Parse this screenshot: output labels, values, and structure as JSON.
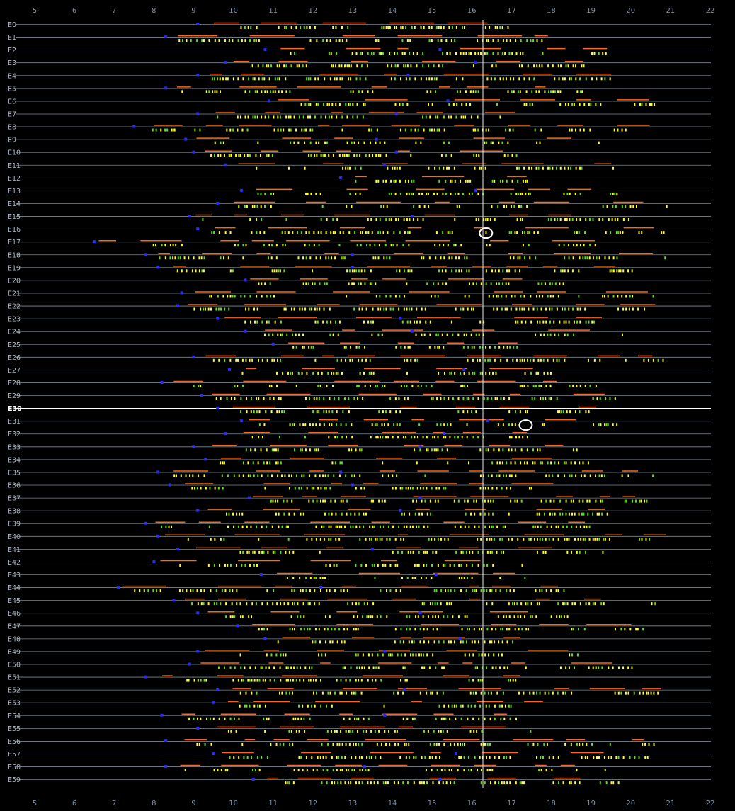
{
  "chart_data": {
    "type": "scatter",
    "title": "",
    "xlabel": "",
    "ylabel": "",
    "xlim": [
      5,
      22
    ],
    "x_ticks": [
      "5",
      "6",
      "7",
      "8",
      "9",
      "10",
      "11",
      "12",
      "13",
      "14",
      "15",
      "16",
      "17",
      "18",
      "19",
      "20",
      "21",
      "22"
    ],
    "grid": "horizontal lines per row",
    "highlighted_row": "E30",
    "cursor_x": 16.28,
    "row_labels": [
      "E0",
      "E1",
      "E2",
      "E3",
      "E4",
      "E5",
      "E6",
      "E7",
      "E8",
      "E9",
      "E10",
      "E11",
      "E12",
      "E13",
      "E14",
      "E15",
      "E16",
      "E17",
      "E18",
      "E19",
      "E20",
      "E21",
      "E22",
      "E23",
      "E24",
      "E25",
      "E26",
      "E27",
      "E28",
      "E29",
      "E30",
      "E31",
      "E32",
      "E33",
      "E34",
      "E35",
      "E36",
      "E37",
      "E38",
      "E39",
      "E40",
      "E41",
      "E42",
      "E43",
      "E44",
      "E45",
      "E46",
      "E47",
      "E48",
      "E49",
      "E50",
      "E51",
      "E52",
      "E53",
      "E54",
      "E55",
      "E56",
      "E57",
      "E58",
      "E59"
    ],
    "start_markers": [
      9.1,
      8.3,
      10.8,
      9.8,
      9.1,
      8.3,
      10.9,
      9.1,
      7.5,
      8.8,
      9.0,
      9.8,
      12.7,
      10.2,
      9.6,
      8.9,
      9.1,
      6.5,
      7.8,
      8.1,
      10.3,
      8.7,
      8.6,
      9.6,
      10.3,
      11.0,
      9.0,
      9.9,
      8.2,
      9.2,
      9.6,
      10.2,
      9.8,
      9.0,
      9.3,
      8.1,
      8.4,
      10.4,
      9.1,
      7.8,
      8.1,
      8.6,
      8.0,
      10.7,
      7.1,
      8.5,
      9.1,
      10.1,
      10.8,
      9.1,
      8.9,
      7.8,
      9.6,
      9.5,
      8.2,
      9.1,
      8.3,
      9.5,
      8.3,
      10.5
    ],
    "second_markers": [
      null,
      null,
      15.2,
      16.1,
      14.4,
      null,
      15.4,
      14.1,
      null,
      13.6,
      14.1,
      13.8,
      null,
      16.1,
      null,
      14.5,
      null,
      null,
      13.0,
      13.0,
      null,
      null,
      null,
      14.2,
      14.5,
      null,
      null,
      15.8,
      null,
      null,
      null,
      16.4,
      15.3,
      14.7,
      null,
      12.7,
      13.0,
      14.7,
      14.2,
      null,
      null,
      13.5,
      null,
      15.1,
      12.2,
      null,
      14.7,
      null,
      15.7,
      13.8,
      null,
      null,
      14.3,
      null,
      13.8,
      null,
      null,
      15.6,
      13.3,
      15.2
    ],
    "circle_markers": [
      {
        "row": "E16",
        "x": 16.0
      },
      {
        "row": "E31",
        "x": 17.0
      }
    ],
    "series": [
      {
        "name": "",
        "color": "#ffff33",
        "kind": "tick marks"
      },
      {
        "name": "",
        "color": "#66dd22",
        "kind": "tick marks"
      },
      {
        "name": "",
        "color": "#ff6611",
        "kind": "segments"
      },
      {
        "name": "",
        "color": "#2a2aff",
        "kind": "markers"
      },
      {
        "name": "",
        "color": "#ffffff",
        "kind": "circle markers"
      }
    ]
  }
}
